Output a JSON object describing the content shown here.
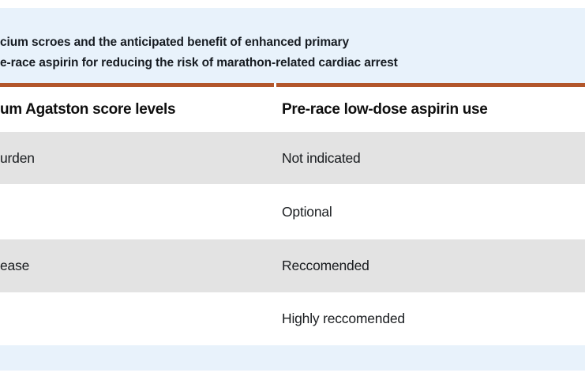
{
  "caption": {
    "line1": "cium scroes and the anticipated benefit of enhanced primary",
    "line2": "e-race aspirin for reducing the risk of marathon-related cardiac arrest"
  },
  "table": {
    "columns": [
      {
        "header": "um Agatston score levels"
      },
      {
        "header": "Pre-race low-dose aspirin use"
      }
    ],
    "rows": [
      {
        "score_level": "urden",
        "aspirin_use": "Not indicated"
      },
      {
        "score_level": "",
        "aspirin_use": "Optional"
      },
      {
        "score_level": "ease",
        "aspirin_use": "Reccomended"
      },
      {
        "score_level": "",
        "aspirin_use": "Highly reccomended"
      }
    ]
  },
  "colors": {
    "band_blue": "#e8f2fb",
    "divider_orange": "#b2562b",
    "row_gray": "#e3e3e3",
    "text_dark": "#191c1f",
    "caption_dark": "#171c22"
  }
}
